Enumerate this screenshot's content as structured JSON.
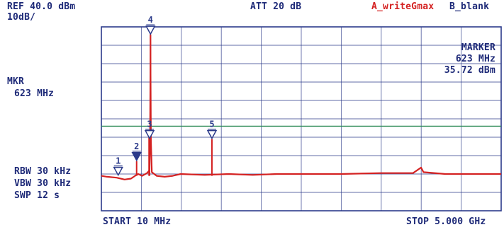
{
  "header": {
    "ref_level": "REF 40.0 dBm",
    "scale": "10dB/",
    "attenuation": "ATT 20 dB",
    "trace_a": "A_writeGmax",
    "trace_b": "B_blank"
  },
  "left_panel": {
    "marker_title": "MKR",
    "marker_freq": "623 MHz",
    "rbw": "RBW 30 kHz",
    "vbw": "VBW 30 kHz",
    "swp": "SWP 12 s"
  },
  "marker_box": {
    "title": "MARKER",
    "freq": "623 MHz",
    "level": "35.72 dBm"
  },
  "footer": {
    "start": "START 10 MHz",
    "stop": "STOP 5.000 GHz"
  },
  "colors": {
    "trace": "#d42222",
    "grid": "#2b3a8a",
    "reference_line": "#2e8b57",
    "text": "#1e2a78"
  },
  "chart_data": {
    "type": "line",
    "x_unit": "MHz",
    "y_unit": "dBm",
    "xlim": [
      10,
      5000
    ],
    "ylim": [
      -60,
      40
    ],
    "grid": true,
    "reference_line_dbm": -14,
    "trace_points": [
      [
        10,
        -41
      ],
      [
        80,
        -41.5
      ],
      [
        200,
        -42
      ],
      [
        300,
        -43
      ],
      [
        380,
        -42.5
      ],
      [
        430,
        -41
      ],
      [
        470,
        -40
      ],
      [
        520,
        -41
      ],
      [
        580,
        -39.5
      ],
      [
        610,
        -38
      ],
      [
        618,
        -20
      ],
      [
        622,
        14
      ],
      [
        623,
        35.72
      ],
      [
        624,
        14
      ],
      [
        628,
        -22
      ],
      [
        640,
        -39
      ],
      [
        700,
        -41
      ],
      [
        800,
        -41.5
      ],
      [
        900,
        -41
      ],
      [
        1000,
        -40
      ],
      [
        1300,
        -40.5
      ],
      [
        1600,
        -40
      ],
      [
        1900,
        -40.5
      ],
      [
        2200,
        -40
      ],
      [
        2600,
        -40
      ],
      [
        3000,
        -40
      ],
      [
        3500,
        -39.5
      ],
      [
        3900,
        -39.5
      ],
      [
        4000,
        -36.5
      ],
      [
        4030,
        -39
      ],
      [
        4300,
        -40
      ],
      [
        4700,
        -40
      ],
      [
        5000,
        -40
      ]
    ],
    "markers": [
      {
        "id": "1",
        "freq_mhz": 220,
        "level_dbm": -41,
        "filled": false
      },
      {
        "id": "2",
        "freq_mhz": 450,
        "level_dbm": -33,
        "filled": true
      },
      {
        "id": "3",
        "freq_mhz": 612,
        "level_dbm": -21,
        "filled": false
      },
      {
        "id": "4",
        "freq_mhz": 623,
        "level_dbm": 35.72,
        "filled": false
      },
      {
        "id": "5",
        "freq_mhz": 1390,
        "level_dbm": -21,
        "filled": false
      }
    ],
    "spurs": [
      {
        "freq_mhz": 450,
        "level_dbm": -33
      },
      {
        "freq_mhz": 605,
        "level_dbm": -20
      },
      {
        "freq_mhz": 612,
        "level_dbm": -21
      },
      {
        "freq_mhz": 1390,
        "level_dbm": -21
      }
    ]
  }
}
